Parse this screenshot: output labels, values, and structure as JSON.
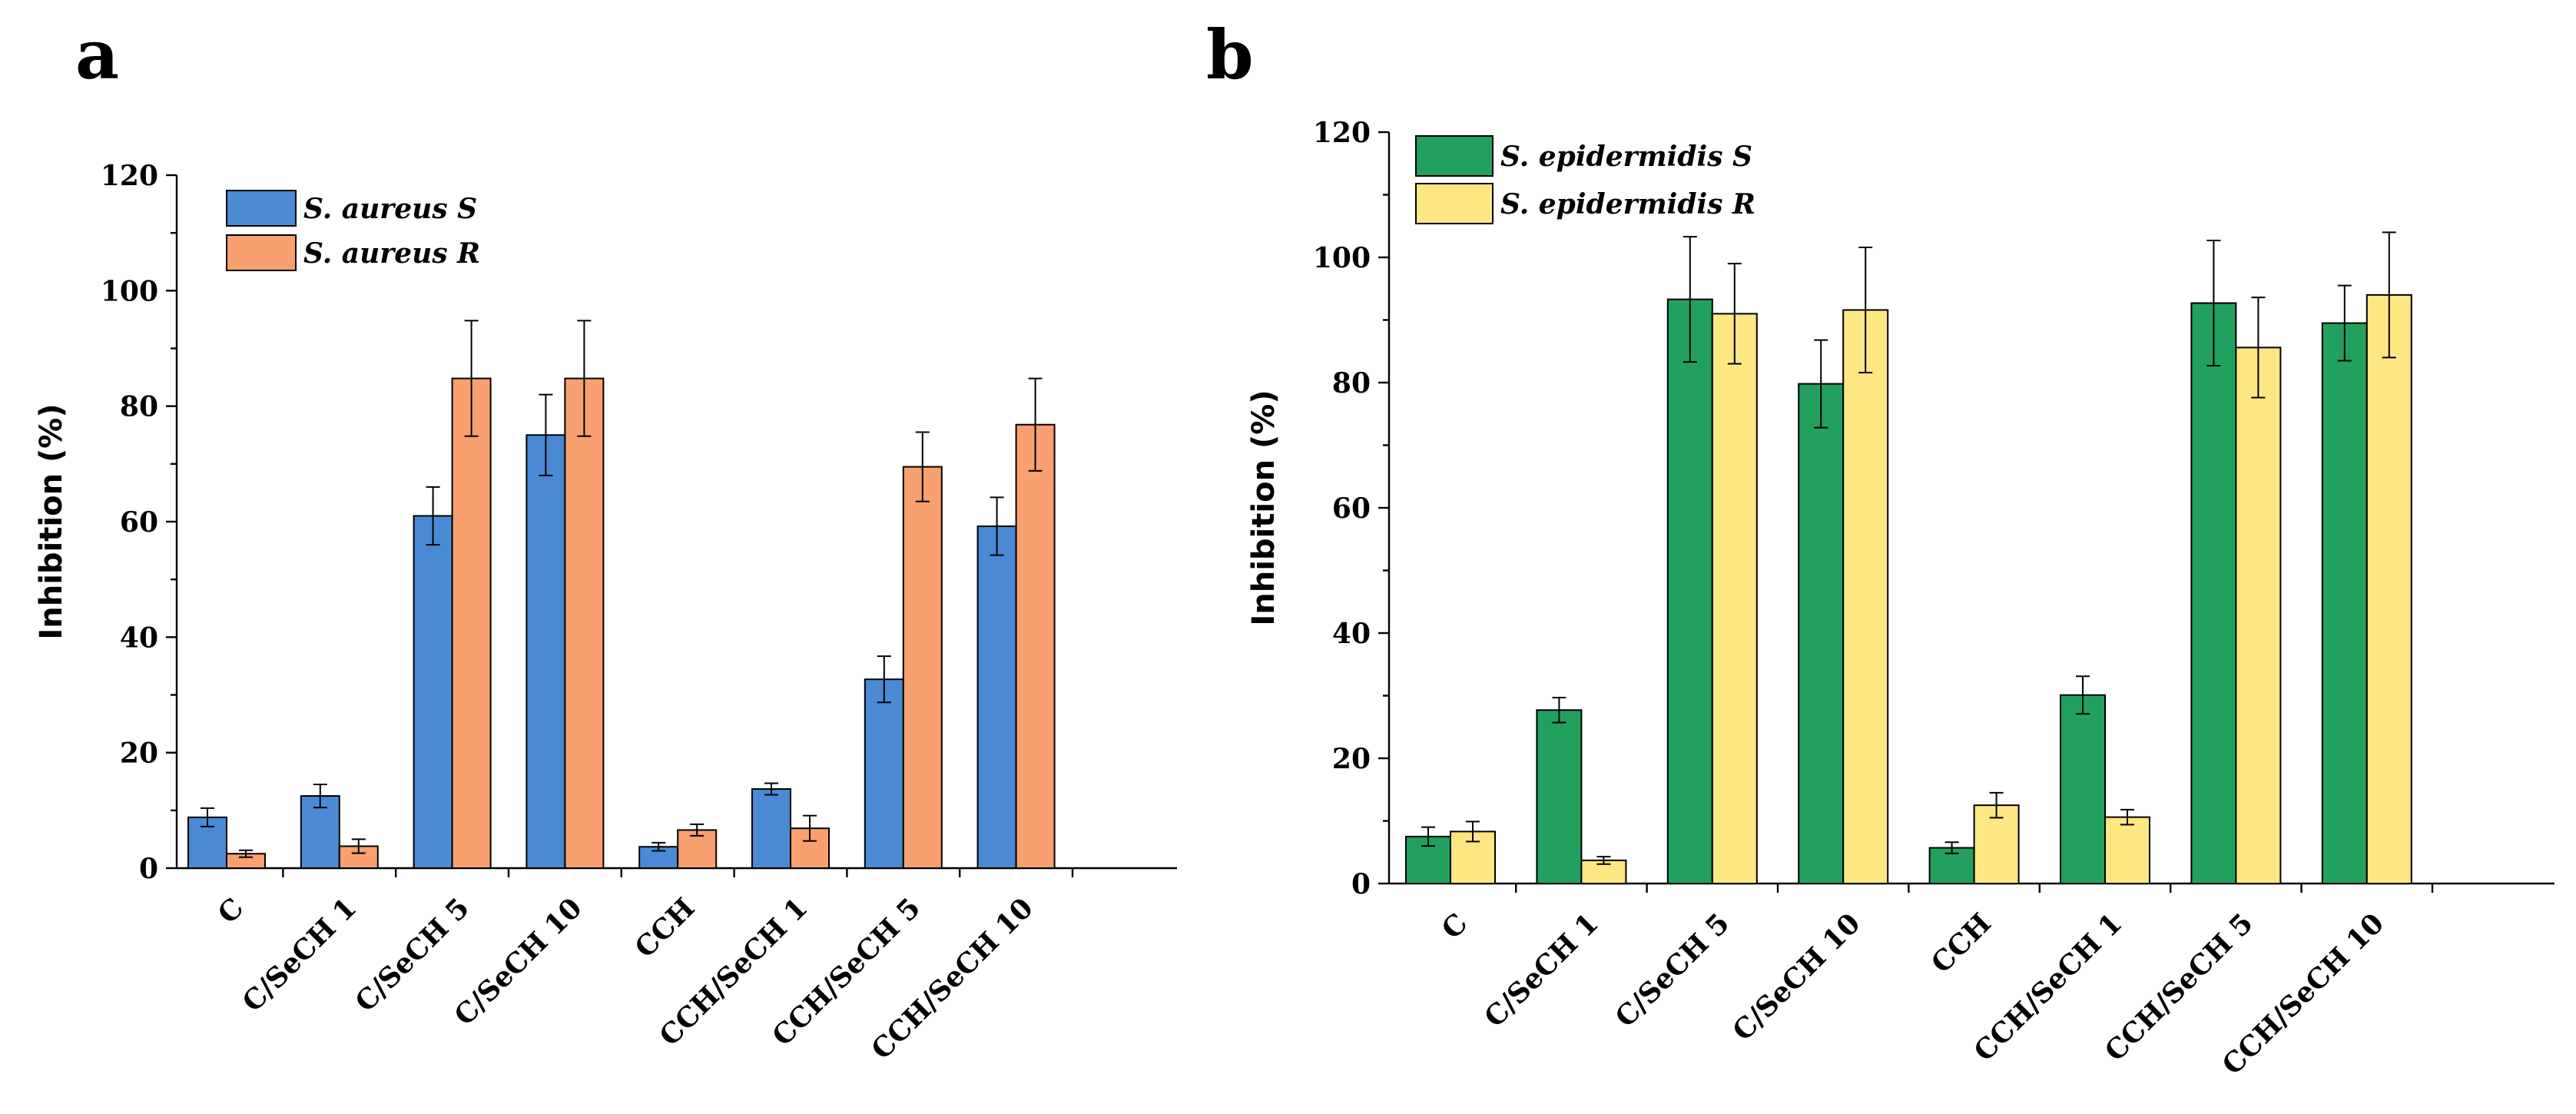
{
  "chart_data": [
    {
      "panel": "a",
      "type": "bar",
      "title": "",
      "xlabel": "",
      "ylabel": "Inhibition (%)",
      "ylim": [
        0,
        120
      ],
      "yticks": [
        0,
        20,
        40,
        60,
        80,
        100,
        120
      ],
      "categories": [
        "C",
        "C/SeCH 1",
        "C/SeCH 5",
        "C/SeCH 10",
        "CCH",
        "CCH/SeCH 1",
        "CCH/SeCH 5",
        "CCH/SeCH 10"
      ],
      "legend_position": "top-left",
      "series": [
        {
          "name": "S. aureus S",
          "color": "#4a8ad4",
          "values": [
            8.8,
            12.5,
            61,
            75,
            3.7,
            13.7,
            32.7,
            59.2
          ],
          "errors": [
            1.6,
            2.0,
            5.0,
            7.0,
            0.7,
            1.0,
            4.0,
            5.0
          ]
        },
        {
          "name": "S. aureus R",
          "color": "#f8a070",
          "values": [
            2.5,
            3.8,
            84.8,
            84.8,
            6.6,
            6.9,
            69.5,
            76.8
          ],
          "errors": [
            0.6,
            1.2,
            10.0,
            10.0,
            1.0,
            2.2,
            6.0,
            8.0
          ]
        }
      ]
    },
    {
      "panel": "b",
      "type": "bar",
      "title": "",
      "xlabel": "",
      "ylabel": "Inhibition (%)",
      "ylim": [
        0,
        120
      ],
      "yticks": [
        0,
        20,
        40,
        60,
        80,
        100,
        120
      ],
      "categories": [
        "C",
        "C/SeCH 1",
        "C/SeCH 5",
        "C/SeCH 10",
        "CCH",
        "CCH/SeCH 1",
        "CCH/SeCH 5",
        "CCH/SeCH 10"
      ],
      "legend_position": "top-left",
      "series": [
        {
          "name": "S. epidermidis S",
          "color": "#22a05e",
          "values": [
            7.5,
            27.7,
            93.3,
            79.8,
            5.7,
            30.1,
            92.7,
            89.5
          ],
          "errors": [
            1.5,
            2.0,
            10.0,
            7.0,
            0.9,
            3.0,
            10.0,
            6.0
          ]
        },
        {
          "name": "S. epidermidis R",
          "color": "#fde783",
          "values": [
            8.3,
            3.7,
            91.0,
            91.6,
            12.5,
            10.6,
            85.6,
            94.0
          ],
          "errors": [
            1.6,
            0.6,
            8.0,
            10.0,
            2.0,
            1.2,
            8.0,
            10.0
          ]
        }
      ]
    }
  ]
}
